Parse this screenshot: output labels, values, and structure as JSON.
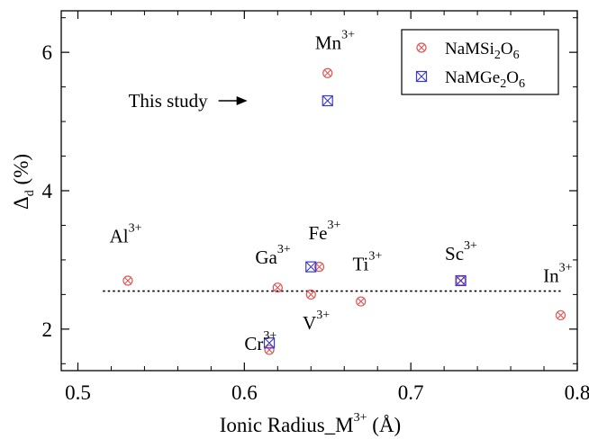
{
  "chart_data": {
    "type": "scatter",
    "xlabel": "Ionic Radius_M",
    "xlabel_sup": "3+",
    "xlabel_unit": "(Å)",
    "ylabel_main": "Δ",
    "ylabel_sub": "d",
    "ylabel_unit": "(%)",
    "xlim": [
      0.49,
      0.8
    ],
    "ylim": [
      1.4,
      6.6
    ],
    "x_ticks": [
      0.5,
      0.6,
      0.7,
      0.8
    ],
    "x_tick_labels": [
      "0.5",
      "0.6",
      "0.7",
      "0.8"
    ],
    "y_ticks": [
      2,
      4,
      6
    ],
    "y_tick_labels": [
      "2",
      "4",
      "6"
    ],
    "grid": false,
    "legend_position": "top-right",
    "series": [
      {
        "name": "NaMSi",
        "name_sub1": "2",
        "name_mid": "O",
        "name_sub2": "6",
        "marker": "circle-x",
        "color": "#e05555",
        "points": [
          {
            "x": 0.53,
            "y": 2.7
          },
          {
            "x": 0.615,
            "y": 1.7
          },
          {
            "x": 0.62,
            "y": 2.6
          },
          {
            "x": 0.64,
            "y": 2.5
          },
          {
            "x": 0.645,
            "y": 2.9
          },
          {
            "x": 0.65,
            "y": 5.7
          },
          {
            "x": 0.67,
            "y": 2.4
          },
          {
            "x": 0.73,
            "y": 2.7
          },
          {
            "x": 0.79,
            "y": 2.2
          }
        ]
      },
      {
        "name": "NaMGe",
        "name_sub1": "2",
        "name_mid": "O",
        "name_sub2": "6",
        "marker": "square-x",
        "color": "#3a3ad0",
        "points": [
          {
            "x": 0.615,
            "y": 1.8
          },
          {
            "x": 0.64,
            "y": 2.9
          },
          {
            "x": 0.65,
            "y": 5.3
          },
          {
            "x": 0.73,
            "y": 2.7
          }
        ]
      }
    ],
    "reference_line": {
      "y": 2.55,
      "x_from": 0.515,
      "x_to": 0.79,
      "style": "dotted"
    },
    "annotations": [
      {
        "element": "Mn",
        "sup": "3+",
        "x": 0.6425,
        "y": 6.05
      },
      {
        "element": "Al",
        "sup": "3+",
        "x": 0.519,
        "y": 3.25
      },
      {
        "element": "Ga",
        "sup": "3+",
        "x": 0.6065,
        "y": 2.95
      },
      {
        "element": "Fe",
        "sup": "3+",
        "x": 0.6385,
        "y": 3.3
      },
      {
        "element": "Ti",
        "sup": "3+",
        "x": 0.665,
        "y": 2.85
      },
      {
        "element": "Sc",
        "sup": "3+",
        "x": 0.7205,
        "y": 3.0
      },
      {
        "element": "In",
        "sup": "3+",
        "x": 0.7795,
        "y": 2.68
      },
      {
        "element": "Cr",
        "sup": "3+",
        "x": 0.6,
        "y": 1.7
      },
      {
        "element": "V",
        "sup": "3+",
        "x": 0.635,
        "y": 2.0
      }
    ],
    "callout": {
      "text": "This study",
      "x": 0.578,
      "y": 5.3
    }
  }
}
